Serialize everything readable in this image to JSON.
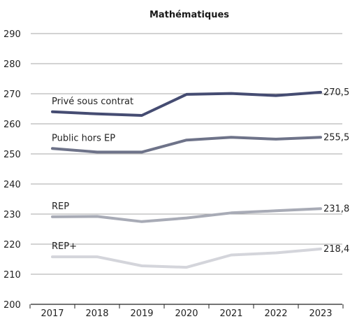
{
  "chart_data": {
    "type": "line",
    "title": "Mathématiques",
    "xlabel": "",
    "ylabel": "",
    "x": [
      "2017",
      "2018",
      "2019",
      "2020",
      "2021",
      "2022",
      "2023"
    ],
    "ylim": [
      200,
      290
    ],
    "yticks": [
      200,
      210,
      220,
      230,
      240,
      250,
      260,
      270,
      280,
      290
    ],
    "grid": true,
    "series": [
      {
        "name": "Privé sous contrat",
        "values": [
          264,
          263.3,
          262.8,
          269.8,
          270.1,
          269.4,
          270.5
        ],
        "color": "#454c72",
        "end_label": "270,5"
      },
      {
        "name": "Public hors EP",
        "values": [
          251.8,
          250.6,
          250.6,
          254.6,
          255.5,
          254.9,
          255.5
        ],
        "color": "#6e7389",
        "end_label": "255,5"
      },
      {
        "name": "REP",
        "values": [
          229.1,
          229.2,
          227.5,
          228.7,
          230.4,
          231.1,
          231.8
        ],
        "color": "#a8abb6",
        "end_label": "231,8"
      },
      {
        "name": "REP+",
        "values": [
          215.8,
          215.8,
          212.8,
          212.3,
          216.4,
          217.1,
          218.4
        ],
        "color": "#d4d5db",
        "end_label": "218,4"
      }
    ]
  }
}
